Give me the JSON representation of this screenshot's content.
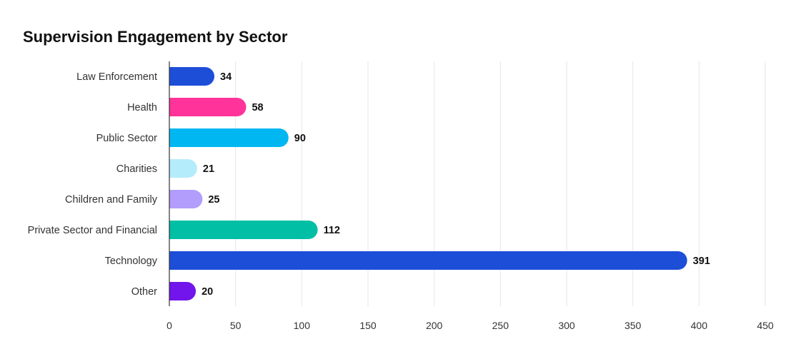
{
  "chart_data": {
    "type": "bar",
    "orientation": "horizontal",
    "title": "Supervision Engagement by Sector",
    "categories": [
      "Law Enforcement",
      "Health",
      "Public Sector",
      "Charities",
      "Children and Family",
      "Private Sector and Financial",
      "Technology",
      "Other"
    ],
    "values": [
      34,
      58,
      90,
      21,
      25,
      112,
      391,
      20
    ],
    "colors": [
      "#1d4ed8",
      "#ff3399",
      "#00b7f1",
      "#b5ecfb",
      "#b39dfc",
      "#00bfa5",
      "#1d4ed8",
      "#7214ec"
    ],
    "xlim": [
      0,
      450
    ],
    "xticks": [
      0,
      50,
      100,
      150,
      200,
      250,
      300,
      350,
      400,
      450
    ],
    "grid": true,
    "data_labels": true,
    "axis_color": "#333333",
    "grid_color": "#e6e6e6"
  }
}
